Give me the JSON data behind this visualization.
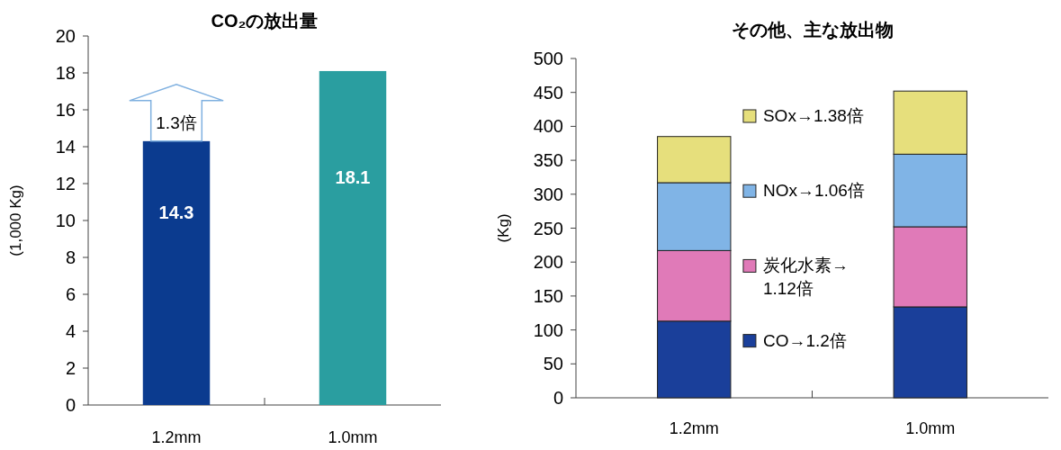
{
  "chart_data": [
    {
      "type": "bar",
      "title": "CO₂の放出量",
      "ylabel": "(1,000 Kg)",
      "categories": [
        "1.2mm",
        "1.0mm"
      ],
      "values": [
        14.3,
        18.1
      ],
      "colors": [
        "#0b3b8f",
        "#2a9ea0"
      ],
      "data_labels": true,
      "ylim": [
        0,
        20
      ],
      "yticks": [
        0,
        2,
        4,
        6,
        8,
        10,
        12,
        14,
        16,
        18,
        20
      ],
      "grid": false,
      "legend": false,
      "annotations": [
        "1.3倍"
      ]
    },
    {
      "type": "bar",
      "title": "その他、主な放出物",
      "ylabel": "(Kg)",
      "categories": [
        "1.2mm",
        "1.0mm"
      ],
      "stacked": true,
      "ylim": [
        0,
        500
      ],
      "yticks": [
        0,
        50,
        100,
        150,
        200,
        250,
        300,
        350,
        400,
        450,
        500
      ],
      "grid": false,
      "legend": "right",
      "series": [
        {
          "name": "CO→1.2倍",
          "color": "#1a3f9a",
          "values": [
            113,
            134
          ]
        },
        {
          "name": "炭化水素→1.12倍",
          "color": "#e07ab8",
          "values": [
            104,
            118
          ]
        },
        {
          "name": "NOx→1.06倍",
          "color": "#80b4e6",
          "values": [
            100,
            107
          ]
        },
        {
          "name": "SOx→1.38倍",
          "color": "#e6df7c",
          "values": [
            68,
            93
          ]
        }
      ]
    }
  ]
}
